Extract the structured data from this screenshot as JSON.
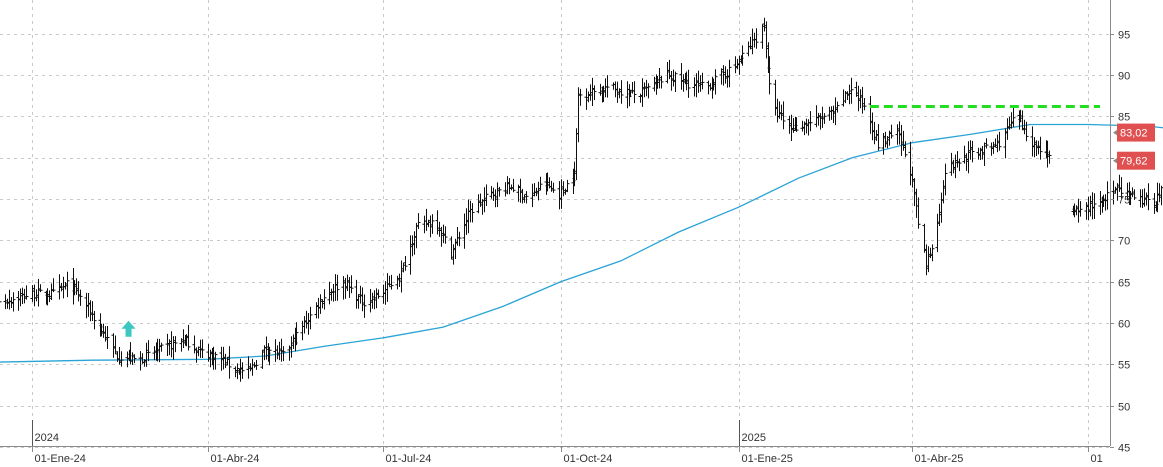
{
  "chart_data": {
    "type": "ohlc",
    "title": "",
    "xlabel": "",
    "ylabel": "",
    "ylim": [
      44,
      99
    ],
    "y_ticks": [
      45,
      50,
      55,
      60,
      65,
      70,
      75,
      80,
      85,
      90,
      95
    ],
    "grid": "dashed",
    "x_ticks": [
      {
        "date": "2024-01-01",
        "label": "01-Ene-24"
      },
      {
        "date": "2024-04-01",
        "label": "01-Abr-24"
      },
      {
        "date": "2024-07-01",
        "label": "01-Jul-24"
      },
      {
        "date": "2024-10-01",
        "label": "01-Oct-24"
      },
      {
        "date": "2025-01-01",
        "label": "01-Ene-25"
      },
      {
        "date": "2025-04-01",
        "label": "01-Abr-25"
      },
      {
        "date": "2025-07-01",
        "label": "01"
      }
    ],
    "year_markers": [
      {
        "date": "2024-01-01",
        "label": "2024"
      },
      {
        "date": "2025-01-01",
        "label": "2025"
      }
    ],
    "x_range": [
      "2023-12-01",
      "2025-07-01"
    ],
    "price_path": [
      [
        "2023-12-01",
        59.5
      ],
      [
        "2023-12-15",
        62.5
      ],
      [
        "2024-01-01",
        63.5
      ],
      [
        "2024-01-12",
        63.5
      ],
      [
        "2024-01-20",
        64.8
      ],
      [
        "2024-01-28",
        62.5
      ],
      [
        "2024-02-05",
        59.5
      ],
      [
        "2024-02-14",
        56.0
      ],
      [
        "2024-02-25",
        55.5
      ],
      [
        "2024-03-05",
        56.5
      ],
      [
        "2024-03-20",
        58.0
      ],
      [
        "2024-03-28",
        56.5
      ],
      [
        "2024-04-05",
        56.0
      ],
      [
        "2024-04-15",
        54.5
      ],
      [
        "2024-04-22",
        54.0
      ],
      [
        "2024-05-01",
        57.0
      ],
      [
        "2024-05-10",
        56.0
      ],
      [
        "2024-05-20",
        59.5
      ],
      [
        "2024-05-30",
        63.0
      ],
      [
        "2024-06-10",
        65.0
      ],
      [
        "2024-06-20",
        62.5
      ],
      [
        "2024-06-30",
        63.5
      ],
      [
        "2024-07-10",
        66.0
      ],
      [
        "2024-07-18",
        71.5
      ],
      [
        "2024-07-28",
        72.5
      ],
      [
        "2024-08-05",
        68.5
      ],
      [
        "2024-08-15",
        73.5
      ],
      [
        "2024-08-25",
        75.5
      ],
      [
        "2024-09-05",
        76.5
      ],
      [
        "2024-09-15",
        75.0
      ],
      [
        "2024-09-22",
        77.0
      ],
      [
        "2024-09-30",
        75.5
      ],
      [
        "2024-10-08",
        78.0
      ],
      [
        "2024-10-10",
        87.5
      ],
      [
        "2024-10-25",
        88.5
      ],
      [
        "2024-11-10",
        87.5
      ],
      [
        "2024-11-25",
        90.0
      ],
      [
        "2024-12-05",
        89.0
      ],
      [
        "2024-12-15",
        88.5
      ],
      [
        "2024-12-30",
        91.0
      ],
      [
        "2025-01-10",
        94.5
      ],
      [
        "2025-01-14",
        96.0
      ],
      [
        "2025-01-18",
        86.0
      ],
      [
        "2025-01-28",
        83.5
      ],
      [
        "2025-02-10",
        84.5
      ],
      [
        "2025-02-20",
        85.5
      ],
      [
        "2025-02-28",
        88.5
      ],
      [
        "2025-03-08",
        86.0
      ],
      [
        "2025-03-14",
        81.5
      ],
      [
        "2025-03-24",
        83.0
      ],
      [
        "2025-03-31",
        78.5
      ],
      [
        "2025-04-04",
        72.0
      ],
      [
        "2025-04-08",
        67.0
      ],
      [
        "2025-04-14",
        72.0
      ],
      [
        "2025-04-18",
        78.5
      ],
      [
        "2025-05-01",
        80.5
      ],
      [
        "2025-05-15",
        81.5
      ],
      [
        "2025-05-25",
        85.0
      ],
      [
        "2025-06-03",
        81.5
      ],
      [
        "2025-06-10",
        80.5
      ],
      [
        "2025-06-12",
        80.0
      ]
    ],
    "price_path_2": [
      [
        "2025-06-22",
        73.0
      ],
      [
        "2025-07-05",
        74.5
      ],
      [
        "2025-07-15",
        76.0
      ],
      [
        "2025-07-25",
        75.0
      ],
      [
        "2025-08-04",
        74.5
      ],
      [
        "2025-08-12",
        77.5
      ],
      [
        "2025-08-22",
        76.5
      ],
      [
        "2025-08-30",
        79.6
      ]
    ],
    "moving_average": {
      "color": "#2aa3d6",
      "points": [
        [
          "2023-12-01",
          55.2
        ],
        [
          "2024-02-01",
          55.5
        ],
        [
          "2024-04-01",
          55.6
        ],
        [
          "2024-05-01",
          56.0
        ],
        [
          "2024-06-01",
          57.2
        ],
        [
          "2024-07-01",
          58.2
        ],
        [
          "2024-08-01",
          59.5
        ],
        [
          "2024-09-01",
          62.0
        ],
        [
          "2024-10-01",
          65.0
        ],
        [
          "2024-11-01",
          67.5
        ],
        [
          "2024-12-01",
          71.0
        ],
        [
          "2025-01-01",
          74.0
        ],
        [
          "2025-02-01",
          77.5
        ],
        [
          "2025-03-01",
          80.0
        ],
        [
          "2025-04-01",
          81.8
        ],
        [
          "2025-05-01",
          82.8
        ],
        [
          "2025-06-01",
          84.0
        ],
        [
          "2025-07-01",
          84.0
        ],
        [
          "2025-08-01",
          83.8
        ],
        [
          "2025-09-01",
          83.0
        ]
      ]
    },
    "resistance": {
      "value": 86.2,
      "from": "2025-03-10",
      "to": "2025-09-01",
      "color": "#22dd22"
    },
    "signal": {
      "date": "2024-02-20",
      "value": 59.3,
      "color": "#3cc8c0"
    },
    "price_labels": [
      {
        "value": 83.02,
        "text": "83,02",
        "color": "#e05050"
      },
      {
        "value": 79.62,
        "text": "79,62",
        "color": "#e05050"
      }
    ]
  }
}
